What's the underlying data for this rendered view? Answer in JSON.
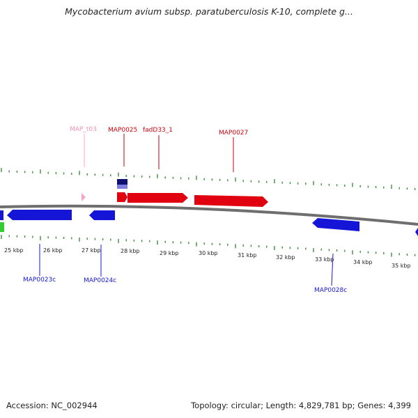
{
  "title": "Mycobacterium avium subsp. paratuberculosis K-10, complete g...",
  "footer": {
    "accession": "Accession: NC_002944",
    "summary": "Topology: circular; Length: 4,829,781 bp; Genes: 4,399"
  },
  "colors": {
    "forward_gene": "#e0000f",
    "reverse_gene": "#1515d8",
    "trna": "#f7a6c6",
    "rrna_dark": "#101070",
    "rrna_light": "#7d7de0",
    "other_feature": "#33cc33",
    "tick": "#2a8a2a",
    "backbone": "#8a8a8a"
  },
  "kbp_labels": [
    "25 kbp",
    "26 kbp",
    "27 kbp",
    "28 kbp",
    "29 kbp",
    "30 kbp",
    "31 kbp",
    "32 kbp",
    "33 kbp",
    "34 kbp",
    "35 kbp"
  ],
  "forward_labels": [
    "MAP_t03",
    "MAP0025",
    "fadD33_1",
    "MAP0027"
  ],
  "reverse_labels": [
    "MAP0023c",
    "MAP0024c",
    "MAP0028c"
  ]
}
